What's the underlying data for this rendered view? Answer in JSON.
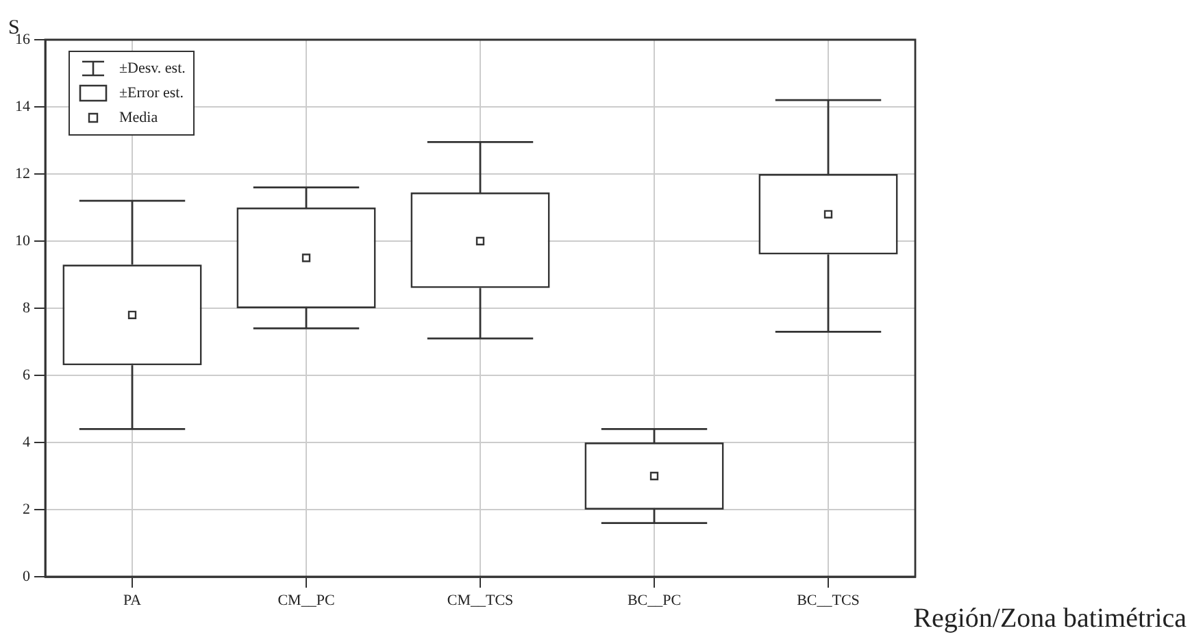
{
  "chart_data": {
    "type": "box",
    "ylabel": "S",
    "xlabel": "Región/Zona batimétrica",
    "categories": [
      "PA",
      "CM__PC",
      "CM__TCS",
      "BC__PC",
      "BC__TCS"
    ],
    "boxes": [
      {
        "low": 4.4,
        "q1": 6.3,
        "q3": 9.3,
        "high": 11.2,
        "mean": 7.8
      },
      {
        "low": 7.4,
        "q1": 8.0,
        "q3": 11.0,
        "high": 11.6,
        "mean": 9.5
      },
      {
        "low": 7.1,
        "q1": 8.6,
        "q3": 11.45,
        "high": 12.95,
        "mean": 10.0
      },
      {
        "low": 1.6,
        "q1": 2.0,
        "q3": 4.0,
        "high": 4.4,
        "mean": 3.0
      },
      {
        "low": 7.3,
        "q1": 9.6,
        "q3": 12.0,
        "high": 14.2,
        "mean": 10.8
      }
    ],
    "color": "#333333",
    "ylim": [
      0,
      16
    ],
    "yticks": [
      0,
      2,
      4,
      6,
      8,
      10,
      12,
      14,
      16
    ],
    "grid": true,
    "marker": "square",
    "annotations": [
      "±Desv. est.",
      "±Error est.",
      "Media"
    ]
  }
}
